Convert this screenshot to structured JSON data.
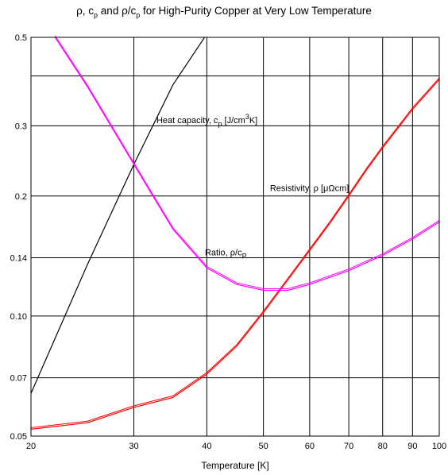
{
  "chart_data": {
    "type": "line",
    "title": {
      "rho": "ρ",
      "sep1": ", ",
      "c": "c",
      "p_sub": "p",
      "mid": " and ",
      "ratio": "ρ/c",
      "p_sub2": "p",
      "rest": " for High-Purity Copper at Very Low Temperature"
    },
    "xlabel": "Temperature [K]",
    "ylabel": "",
    "x_scale": "log",
    "y_scale": "log",
    "xlim": [
      20,
      100
    ],
    "ylim": [
      0.05,
      0.5
    ],
    "grid": true,
    "x_ticks": [
      20,
      30,
      40,
      50,
      60,
      70,
      80,
      90,
      100
    ],
    "x_tick_labels": [
      "20",
      "30",
      "40",
      "50",
      "60",
      "70",
      "80",
      "90",
      "100"
    ],
    "y_ticks": [
      0.05,
      0.07,
      0.1,
      0.14,
      0.2,
      0.3,
      0.5
    ],
    "y_tick_labels": [
      "0.05",
      "0.07",
      "0.10",
      "0.14",
      "0.2",
      "0.3",
      "0.5"
    ],
    "y_extra_gridlines": [
      0.4
    ],
    "series": [
      {
        "key": "heat_capacity",
        "color": "#000000",
        "points": [
          [
            20,
            0.064
          ],
          [
            25,
            0.135
          ],
          [
            30,
            0.24
          ],
          [
            35,
            0.38
          ],
          [
            40,
            0.51
          ]
        ],
        "label": {
          "pre": "Heat capacity, c",
          "sub": "p",
          "mid": " [J/cm",
          "sup": "3",
          "post": "K]"
        }
      },
      {
        "key": "resistivity",
        "color": "#ff0000",
        "points": [
          [
            20,
            0.052
          ],
          [
            25,
            0.054
          ],
          [
            30,
            0.059
          ],
          [
            35,
            0.0625
          ],
          [
            40,
            0.0715
          ],
          [
            45,
            0.084
          ],
          [
            50,
            0.102
          ],
          [
            55,
            0.123
          ],
          [
            60,
            0.146
          ],
          [
            65,
            0.171
          ],
          [
            70,
            0.2
          ],
          [
            75,
            0.232
          ],
          [
            80,
            0.264
          ],
          [
            90,
            0.33
          ],
          [
            100,
            0.392
          ]
        ],
        "label": {
          "pre": "Resistivity, ",
          "rho": "ρ",
          "post": " [μΩcm]"
        }
      },
      {
        "key": "ratio",
        "color": "#ff00ff",
        "points": [
          [
            22,
            0.5
          ],
          [
            25,
            0.375
          ],
          [
            30,
            0.24
          ],
          [
            35,
            0.165
          ],
          [
            40,
            0.132
          ],
          [
            45,
            0.12
          ],
          [
            50,
            0.116
          ],
          [
            55,
            0.116
          ],
          [
            60,
            0.12
          ],
          [
            70,
            0.13
          ],
          [
            80,
            0.142
          ],
          [
            90,
            0.156
          ],
          [
            100,
            0.172
          ]
        ],
        "label": {
          "pre": "Ratio, ",
          "rho": "ρ/c",
          "sub": "P"
        }
      }
    ]
  }
}
